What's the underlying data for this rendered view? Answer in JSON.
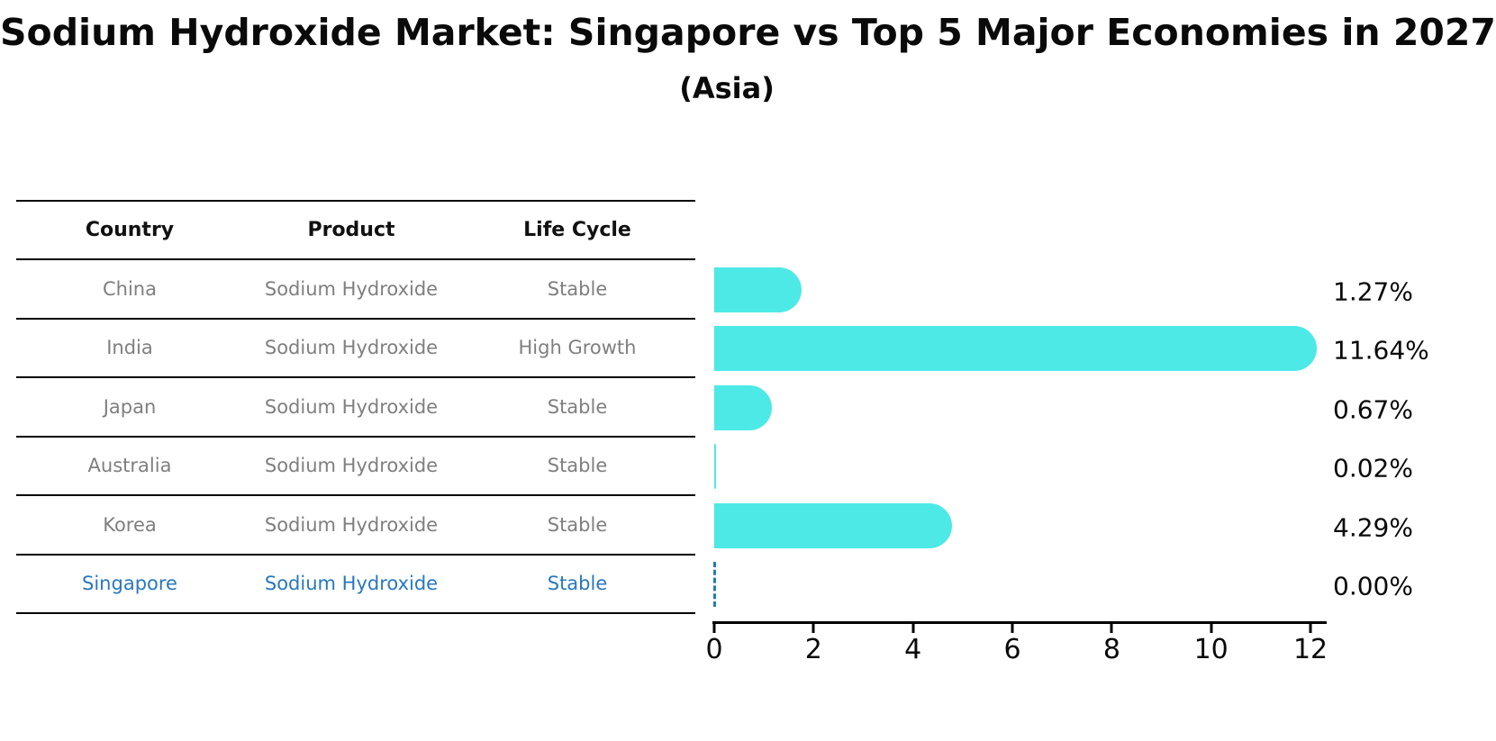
{
  "title": "Sodium Hydroxide Market: Singapore vs Top 5 Major Economies in 2027",
  "subtitle": "(Asia)",
  "colors": {
    "bar": "#4DE9E6",
    "highlight_blue": "#2878be",
    "table_text_gray": "#7f7f7f",
    "text_black": "#0a0a0a"
  },
  "table": {
    "headers": [
      "Country",
      "Product",
      "Life Cycle"
    ],
    "rows": [
      {
        "country": "China",
        "product": "Sodium Hydroxide",
        "life_cycle": "Stable",
        "highlight": false
      },
      {
        "country": "India",
        "product": "Sodium Hydroxide",
        "life_cycle": "High Growth",
        "highlight": false
      },
      {
        "country": "Japan",
        "product": "Sodium Hydroxide",
        "life_cycle": "Stable",
        "highlight": false
      },
      {
        "country": "Australia",
        "product": "Sodium Hydroxide",
        "life_cycle": "Stable",
        "highlight": false
      },
      {
        "country": "Korea",
        "product": "Sodium Hydroxide",
        "life_cycle": "Stable",
        "highlight": false
      },
      {
        "country": "Singapore",
        "product": "Sodium Hydroxide",
        "life_cycle": "Stable",
        "highlight": true
      }
    ]
  },
  "chart_data": {
    "type": "bar",
    "orientation": "horizontal",
    "categories": [
      "China",
      "India",
      "Japan",
      "Australia",
      "Korea",
      "Singapore"
    ],
    "values": [
      1.27,
      11.64,
      0.67,
      0.02,
      4.29,
      0.0
    ],
    "labels": [
      "1.27%",
      "11.64%",
      "0.67%",
      "0.02%",
      "4.29%",
      "0.00%"
    ],
    "title": "Sodium Hydroxide Market: Singapore vs Top 5 Major Economies in 2027",
    "subtitle": "(Asia)",
    "xlabel": "",
    "ylabel": "",
    "xlim": [
      0,
      12
    ],
    "xticks": [
      0,
      2,
      4,
      6,
      8,
      10,
      12
    ],
    "grid": false,
    "legend": false,
    "bar_color": "#4DE9E6",
    "highlight_index": 5,
    "highlight_style": "dashed-blue-outline-zero-bar"
  }
}
